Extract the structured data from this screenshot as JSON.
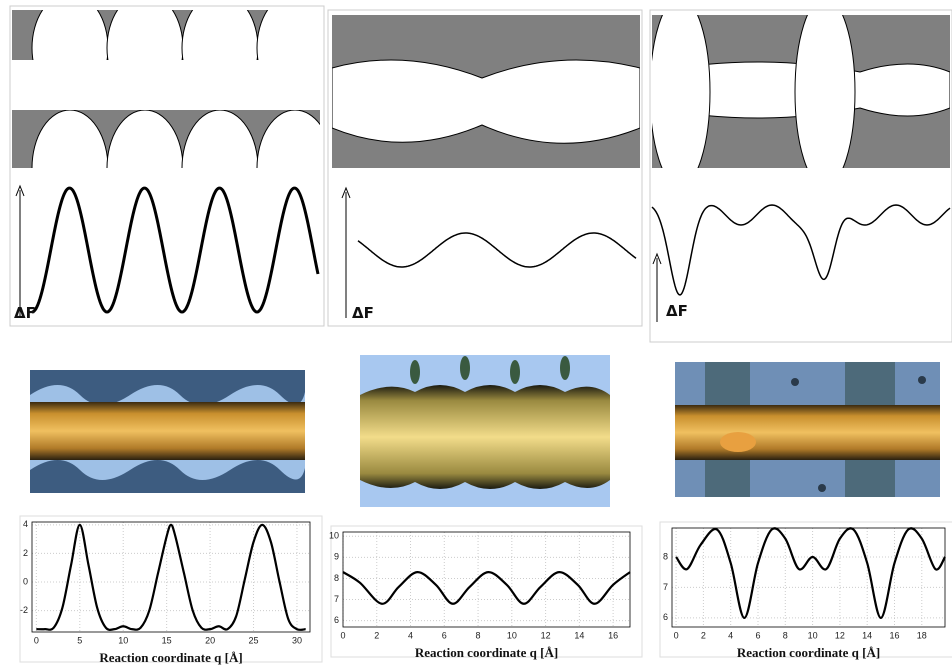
{
  "schematics": [
    {
      "label": "ΔF"
    },
    {
      "label": "ΔF"
    },
    {
      "label": "ΔF"
    }
  ],
  "chart_data": [
    {
      "type": "line",
      "xlabel": "Reaction coordinate q [Å]",
      "x": [
        0,
        1,
        2,
        3,
        4,
        5,
        6,
        7,
        8,
        9,
        10,
        11,
        12,
        13,
        14,
        15,
        15.5,
        16,
        17,
        18,
        19,
        20,
        21,
        22,
        23,
        24,
        25,
        26,
        27,
        28,
        29,
        30,
        31
      ],
      "values": [
        -3.3,
        -3.3,
        -3.2,
        -1.8,
        1.2,
        4,
        1.2,
        -1.8,
        -3.2,
        -3.3,
        -3.1,
        -3.3,
        -3.2,
        -2,
        0.6,
        3.2,
        4,
        3.2,
        0.6,
        -2,
        -3.2,
        -3.3,
        -3.1,
        -3.3,
        -2.4,
        0.2,
        2.8,
        4,
        2.8,
        0,
        -2.6,
        -3.3,
        -3.3
      ],
      "color": "#000000",
      "xlim": [
        -0.5,
        31.5
      ],
      "ylim": [
        -3.5,
        4.2
      ],
      "xticks": [
        0,
        5,
        10,
        15,
        20,
        25,
        30
      ],
      "yticks": [
        -2,
        0,
        2,
        4
      ],
      "grid": true
    },
    {
      "type": "line",
      "xlabel": "Reaction coordinate q [Å]",
      "x": [
        0,
        1,
        2.3,
        3.3,
        4.4,
        5.5,
        6.5,
        7.5,
        8.6,
        9.7,
        10.7,
        11.7,
        12.8,
        13.9,
        14.9,
        16,
        17
      ],
      "values": [
        8.3,
        7.8,
        6.8,
        7.6,
        8.3,
        7.7,
        6.8,
        7.6,
        8.3,
        7.7,
        6.8,
        7.6,
        8.3,
        7.7,
        6.8,
        7.7,
        8.3
      ],
      "color": "#000000",
      "xlim": [
        0,
        17
      ],
      "ylim": [
        5.7,
        10.2
      ],
      "xticks": [
        0,
        2,
        4,
        6,
        8,
        10,
        12,
        14,
        16
      ],
      "yticks": [
        6,
        7,
        8,
        9,
        10
      ],
      "grid": true
    },
    {
      "type": "line",
      "xlabel": "Reaction coordinate q [Å]",
      "x": [
        0,
        0.8,
        1.8,
        3,
        4,
        5,
        6,
        7,
        8,
        9,
        10,
        11,
        12,
        13,
        14,
        15,
        16,
        17,
        18,
        19,
        19.7
      ],
      "values": [
        8,
        7.6,
        8.4,
        8.9,
        7.8,
        6,
        7.8,
        8.9,
        8.6,
        7.6,
        8,
        7.6,
        8.6,
        8.9,
        7.8,
        6,
        7.8,
        8.9,
        8.6,
        7.6,
        8
      ],
      "color": "#000000",
      "xlim": [
        -0.3,
        19.7
      ],
      "ylim": [
        5.7,
        8.95
      ],
      "xticks": [
        0,
        2,
        4,
        6,
        8,
        10,
        12,
        14,
        16,
        18
      ],
      "yticks": [
        6,
        7,
        8
      ],
      "grid": true
    }
  ]
}
